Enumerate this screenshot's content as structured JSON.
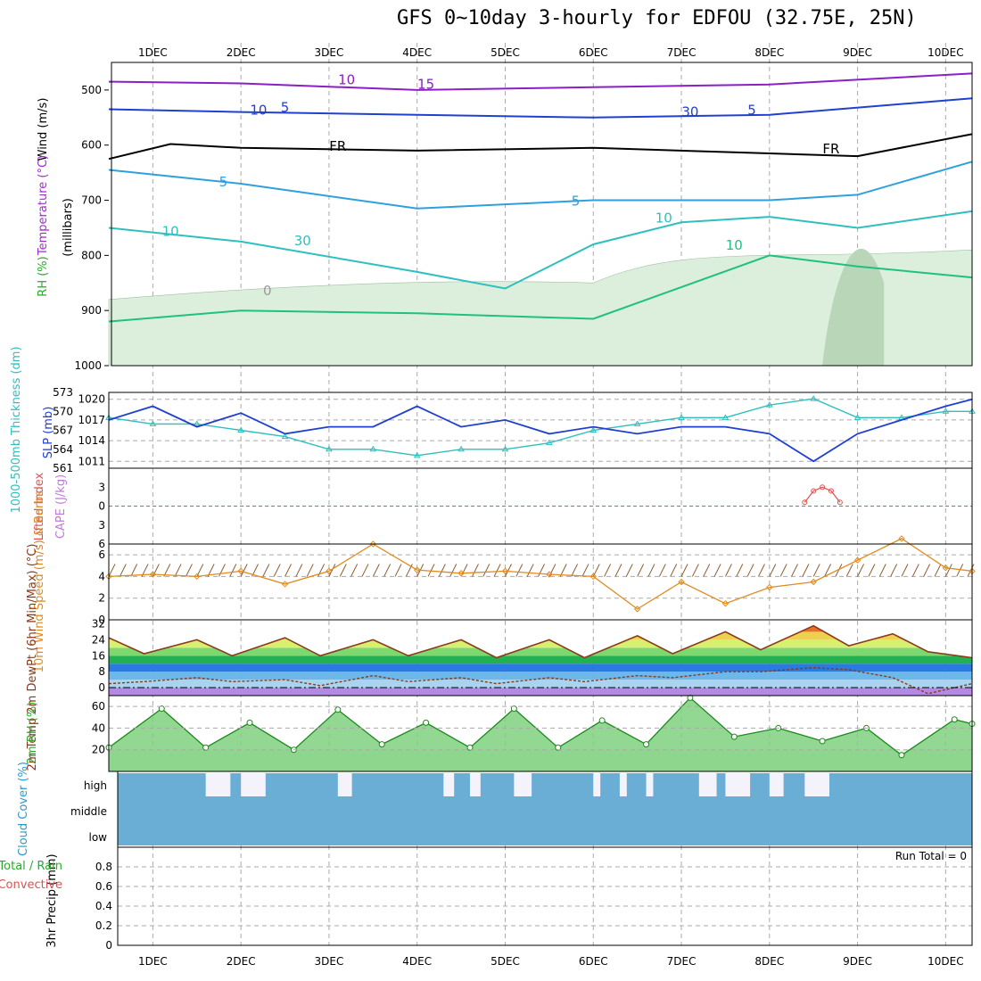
{
  "title": "GFS 0~10day 3-hourly for EDFOU (32.75E, 25N)",
  "date_labels": [
    "1DEC",
    "2DEC",
    "3DEC",
    "4DEC",
    "5DEC",
    "6DEC",
    "7DEC",
    "8DEC",
    "9DEC",
    "10DEC"
  ],
  "run_total_text": "Run Total = 0",
  "colors": {
    "rh_fill": "#dcefdc",
    "cloud_fill": "#6aaed6",
    "slp": "#1f3fd0",
    "thickness": "#2fbfbf",
    "wind_speed": "#e08a1e",
    "temp_line": "#8b3a1a",
    "cape": "#e05050"
  },
  "chart_data": [
    {
      "type": "contour",
      "panel": "upper_air",
      "ylabel": "(millibars)",
      "ylabel_left": [
        "Wind (m/s)",
        "Temperature (°C)",
        "RH (%)"
      ],
      "y_ticks": [
        500,
        600,
        700,
        800,
        900,
        1000
      ],
      "ylim": [
        450,
        1000
      ],
      "y_reversed": true,
      "x_days": [
        0.5,
        10.3
      ],
      "contour_labels": [
        "10",
        "5",
        "5",
        "FR",
        "FR",
        "5",
        "5",
        "10",
        "10",
        "15",
        "10",
        "30",
        "30",
        "10",
        "0"
      ],
      "isotherms": [
        {
          "level": "10",
          "color": "#8a1fc4",
          "x": [
            0.5,
            2,
            4,
            6,
            8,
            10.3
          ],
          "p": [
            485,
            488,
            500,
            495,
            490,
            470
          ]
        },
        {
          "level": "5",
          "color": "#2040d0",
          "x": [
            0.5,
            2,
            4,
            6,
            8,
            10.3
          ],
          "p": [
            535,
            540,
            545,
            550,
            545,
            515
          ]
        },
        {
          "level": "0 (FR)",
          "color": "#000000",
          "x": [
            0.5,
            1.2,
            2,
            4,
            6,
            8,
            9,
            10.3
          ],
          "p": [
            625,
            598,
            605,
            610,
            605,
            615,
            620,
            580
          ]
        },
        {
          "level": "-5",
          "color": "#2ea0e0",
          "x": [
            0.5,
            2,
            4,
            6,
            8,
            9,
            10.3
          ],
          "p": [
            645,
            670,
            715,
            700,
            700,
            690,
            630
          ]
        },
        {
          "level": "-10",
          "color": "#2fbfbf",
          "x": [
            0.5,
            2,
            4,
            5,
            6,
            7,
            8,
            9,
            10.3
          ],
          "p": [
            750,
            775,
            830,
            860,
            780,
            740,
            730,
            750,
            720
          ]
        },
        {
          "level": "-15",
          "color": "#20c080",
          "x": [
            0.5,
            2,
            4,
            6,
            8,
            9,
            10.3
          ],
          "p": [
            920,
            900,
            905,
            915,
            800,
            820,
            840
          ]
        }
      ]
    },
    {
      "type": "line",
      "panel": "slp_thickness",
      "ylabel": "SLP (mb)",
      "ylabel2": "1000-500mb Thickness (dm)",
      "y_ticks": [
        1011,
        1014,
        1017,
        1020
      ],
      "y2_ticks": [
        561,
        564,
        567,
        570,
        573
      ],
      "ylim": [
        1010,
        1021
      ],
      "y2lim": [
        561,
        573
      ],
      "x_days": [
        0.5,
        1,
        1.5,
        2,
        2.5,
        3,
        3.5,
        4,
        4.5,
        5,
        5.5,
        6,
        6.5,
        7,
        7.5,
        8,
        8.5,
        9,
        9.5,
        10,
        10.3
      ],
      "series": [
        {
          "name": "SLP",
          "values": [
            1017,
            1019,
            1016,
            1018,
            1015,
            1016,
            1016,
            1019,
            1016,
            1017,
            1015,
            1016,
            1015,
            1016,
            1016,
            1015,
            1011,
            1015,
            1017,
            1019,
            1020
          ]
        },
        {
          "name": "Thickness",
          "values": [
            569,
            568,
            568,
            567,
            566,
            564,
            564,
            563,
            564,
            564,
            565,
            567,
            568,
            569,
            569,
            571,
            572,
            569,
            569,
            570,
            570
          ]
        }
      ]
    },
    {
      "type": "line",
      "panel": "cape_li",
      "ylabel": "Lifted Index",
      "ylabel2": "CAPE (J/kg)",
      "y_ticks": [
        -3,
        0,
        3,
        6
      ],
      "y_tick_labels": [
        "3",
        "0",
        "3",
        "6"
      ],
      "ylim": [
        -6,
        6
      ],
      "series": [
        {
          "name": "CAPE",
          "x": [
            8.4,
            8.5,
            8.6,
            8.7,
            8.8
          ],
          "values": [
            0.6,
            2.4,
            3.0,
            2.4,
            0.6
          ]
        }
      ]
    },
    {
      "type": "line",
      "panel": "wind10m",
      "ylabel": "10m Wind Speed (m/s) & Barbs",
      "y_ticks": [
        0,
        2,
        4,
        6
      ],
      "ylim": [
        0,
        7
      ],
      "x_days": [
        0.5,
        1,
        1.5,
        2,
        2.5,
        3,
        3.5,
        4,
        4.5,
        5,
        5.5,
        6,
        6.5,
        7,
        7.5,
        8,
        8.5,
        9,
        9.5,
        10,
        10.3
      ],
      "series": [
        {
          "name": "10m Wind Speed",
          "values": [
            4.0,
            4.2,
            4.0,
            4.5,
            3.3,
            4.5,
            7.0,
            4.6,
            4.3,
            4.5,
            4.2,
            4.0,
            1.0,
            3.5,
            1.5,
            3.0,
            3.5,
            5.5,
            7.5,
            4.8,
            4.5
          ]
        }
      ]
    },
    {
      "type": "area",
      "panel": "temp2m",
      "ylabel": "2m Temp 2m DewPt (6hr Min/Max) (°C)",
      "y_ticks": [
        0,
        8,
        16,
        24,
        32
      ],
      "ylim": [
        -4,
        34
      ],
      "x_days": [
        0.5,
        0.9,
        1.5,
        1.9,
        2.5,
        2.9,
        3.5,
        3.9,
        4.5,
        4.9,
        5.5,
        5.9,
        6.5,
        6.9,
        7.5,
        7.9,
        8.5,
        8.9,
        9.4,
        9.8,
        10.3
      ],
      "series": [
        {
          "name": "2m Temp",
          "values": [
            25,
            17,
            24,
            16,
            25,
            16,
            24,
            16,
            24,
            15,
            24,
            15,
            26,
            17,
            28,
            19,
            31,
            21,
            27,
            18,
            15
          ]
        },
        {
          "name": "2m DewPt",
          "values": [
            2,
            3,
            5,
            3,
            4,
            1,
            6,
            3,
            5,
            2,
            5,
            3,
            6,
            5,
            8,
            8,
            10,
            9,
            5,
            -3,
            2
          ]
        }
      ]
    },
    {
      "type": "area",
      "panel": "rh2m",
      "ylabel": "2m RH (%)",
      "y_ticks": [
        20,
        40,
        60
      ],
      "ylim": [
        0,
        70
      ],
      "x_days": [
        0.5,
        1.1,
        1.6,
        2.1,
        2.6,
        3.1,
        3.6,
        4.1,
        4.6,
        5.1,
        5.6,
        6.1,
        6.6,
        7.1,
        7.6,
        8.1,
        8.6,
        9.1,
        9.5,
        10.1,
        10.3
      ],
      "series": [
        {
          "name": "2m RH",
          "values": [
            22,
            58,
            22,
            45,
            20,
            57,
            25,
            45,
            22,
            58,
            22,
            47,
            25,
            68,
            32,
            40,
            28,
            40,
            15,
            48,
            44
          ]
        }
      ]
    },
    {
      "type": "bar",
      "panel": "cloud_cover",
      "ylabel": "Cloud Cover (%)",
      "categories": [
        "high",
        "middle",
        "low"
      ],
      "values": [
        100,
        100,
        100
      ]
    },
    {
      "type": "bar",
      "panel": "precip",
      "ylabel": "3hr Precip (mm)",
      "ylabel_left": [
        "Total / Rain",
        "Convective"
      ],
      "y_ticks": [
        0,
        0.2,
        0.4,
        0.6,
        0.8
      ],
      "ylim": [
        0,
        1
      ],
      "values": []
    }
  ]
}
